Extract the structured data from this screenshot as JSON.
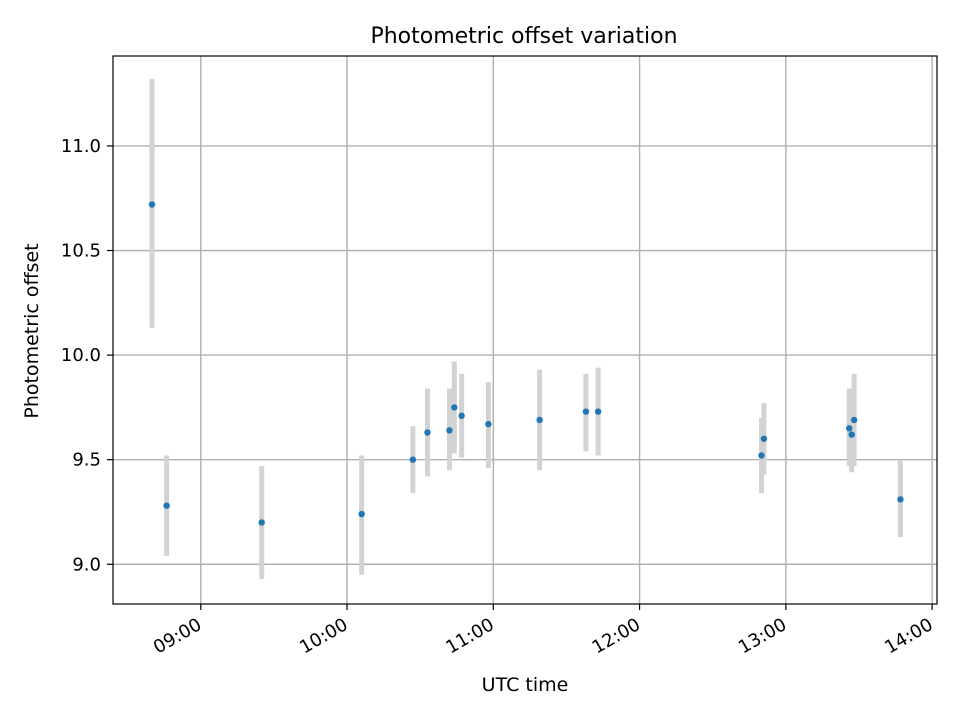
{
  "chart_data": {
    "type": "scatter",
    "title": "Photometric offset variation",
    "xlabel": "UTC time",
    "ylabel": "Photometric offset",
    "x_unit": "UTC time of day",
    "xlim": [
      "08:24",
      "14:02"
    ],
    "ylim": [
      8.81,
      11.43
    ],
    "xticks": [
      "09:00",
      "10:00",
      "11:00",
      "12:00",
      "13:00",
      "14:00"
    ],
    "yticks": [
      "9.0",
      "9.5",
      "10.0",
      "10.5",
      "11.0"
    ],
    "grid": true,
    "legend": "none",
    "marker_color": "#1f77b4",
    "errorbar_color": "#d3d3d3",
    "points": [
      {
        "x": "08:40",
        "y": 10.72,
        "ylow": 10.13,
        "yhigh": 11.32
      },
      {
        "x": "08:46",
        "y": 9.28,
        "ylow": 9.04,
        "yhigh": 9.52
      },
      {
        "x": "09:25",
        "y": 9.2,
        "ylow": 8.93,
        "yhigh": 9.47
      },
      {
        "x": "10:06",
        "y": 9.24,
        "ylow": 8.95,
        "yhigh": 9.52
      },
      {
        "x": "10:27",
        "y": 9.5,
        "ylow": 9.34,
        "yhigh": 9.66
      },
      {
        "x": "10:33",
        "y": 9.63,
        "ylow": 9.42,
        "yhigh": 9.84
      },
      {
        "x": "10:42",
        "y": 9.64,
        "ylow": 9.45,
        "yhigh": 9.84
      },
      {
        "x": "10:44",
        "y": 9.75,
        "ylow": 9.53,
        "yhigh": 9.97
      },
      {
        "x": "10:47",
        "y": 9.71,
        "ylow": 9.51,
        "yhigh": 9.91
      },
      {
        "x": "10:58",
        "y": 9.67,
        "ylow": 9.46,
        "yhigh": 9.87
      },
      {
        "x": "11:19",
        "y": 9.69,
        "ylow": 9.45,
        "yhigh": 9.93
      },
      {
        "x": "11:38",
        "y": 9.73,
        "ylow": 9.54,
        "yhigh": 9.91
      },
      {
        "x": "11:43",
        "y": 9.73,
        "ylow": 9.52,
        "yhigh": 9.94
      },
      {
        "x": "12:50",
        "y": 9.52,
        "ylow": 9.34,
        "yhigh": 9.7
      },
      {
        "x": "12:51",
        "y": 9.6,
        "ylow": 9.43,
        "yhigh": 9.77
      },
      {
        "x": "13:26",
        "y": 9.65,
        "ylow": 9.47,
        "yhigh": 9.84
      },
      {
        "x": "13:27",
        "y": 9.62,
        "ylow": 9.44,
        "yhigh": 9.8
      },
      {
        "x": "13:28",
        "y": 9.69,
        "ylow": 9.47,
        "yhigh": 9.91
      },
      {
        "x": "13:47",
        "y": 9.31,
        "ylow": 9.13,
        "yhigh": 9.5
      }
    ]
  }
}
